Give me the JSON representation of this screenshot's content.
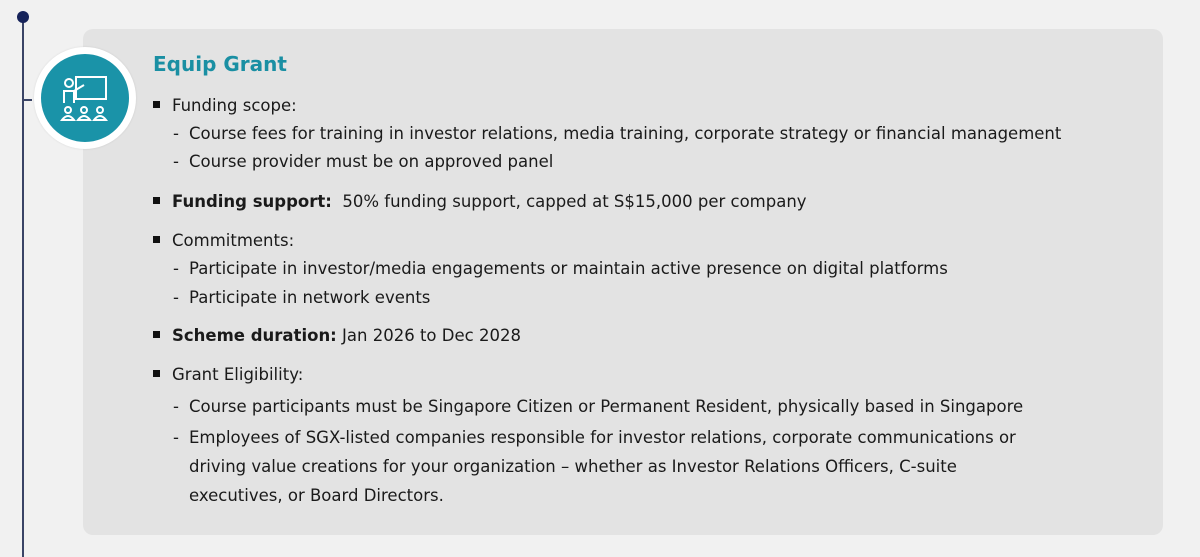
{
  "accent": "#1a93a8",
  "icon": "presentation-teacher-icon",
  "title": "Equip Grant",
  "items": [
    {
      "label": "Funding scope:",
      "text": "",
      "subs": [
        "Course fees for training in investor relations, media training, corporate strategy or financial management",
        "Course provider must be on approved panel"
      ]
    },
    {
      "label": "Funding support:",
      "text": "50% funding support, capped at S$15,000 per company"
    },
    {
      "label": "Commitments:",
      "text": "",
      "subs": [
        "Participate in investor/media engagements or maintain active presence on digital platforms",
        "Participate in network events"
      ]
    },
    {
      "label": "Scheme duration:",
      "text": "Jan 2026 to Dec 2028"
    },
    {
      "label": "Grant Eligibility:",
      "text": "",
      "subs": [
        "Course participants must be Singapore Citizen or Permanent Resident, physically based in Singapore",
        "Employees of SGX-listed companies responsible for investor relations, corporate communications or",
        "driving value creations for your organization – whether as Investor Relations Officers, C-suite",
        "executives, or Board Directors."
      ]
    }
  ]
}
